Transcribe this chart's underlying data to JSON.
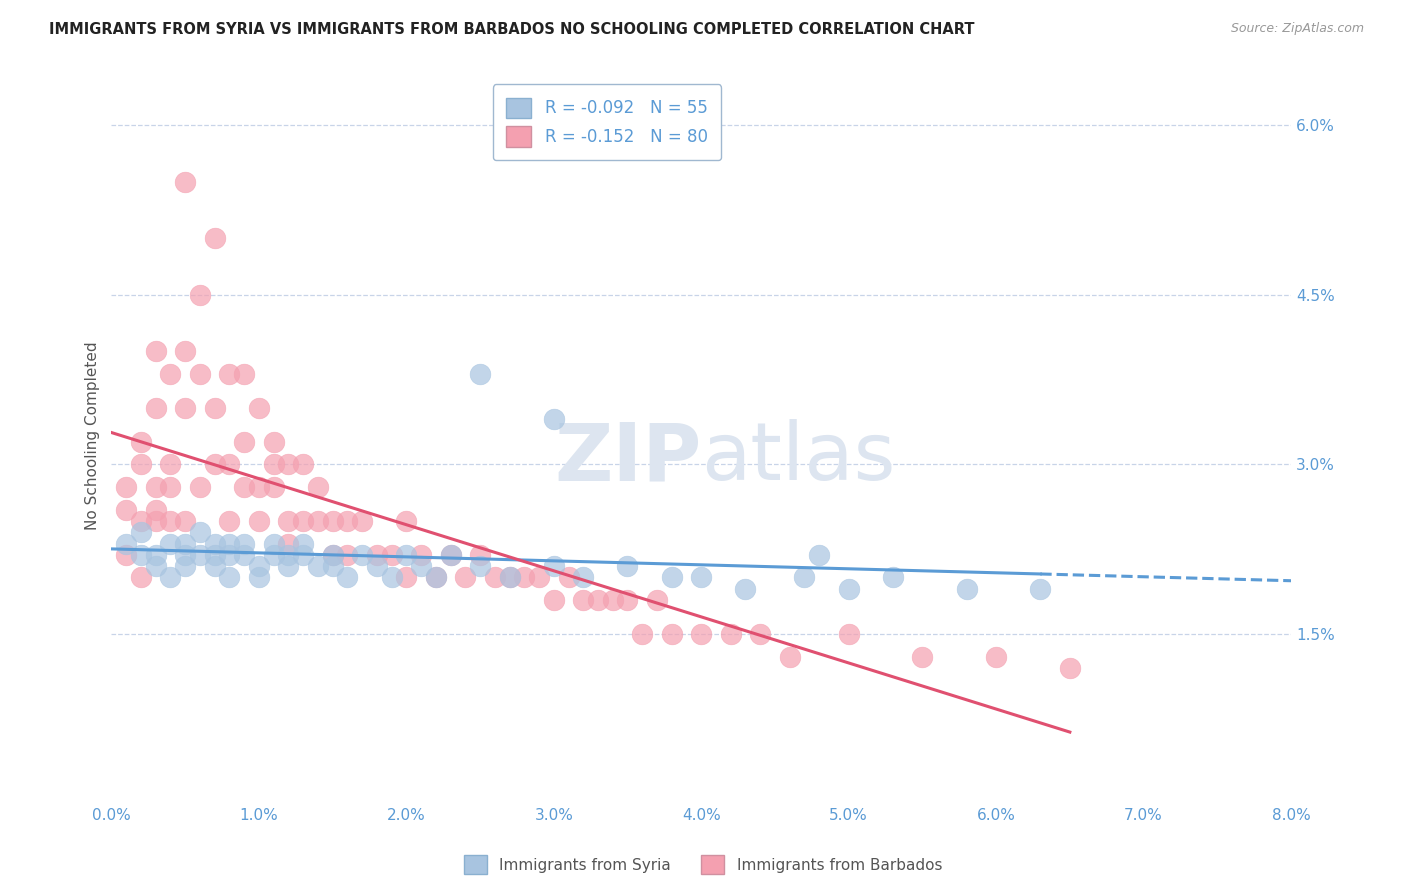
{
  "title": "IMMIGRANTS FROM SYRIA VS IMMIGRANTS FROM BARBADOS NO SCHOOLING COMPLETED CORRELATION CHART",
  "source": "Source: ZipAtlas.com",
  "ylabel": "No Schooling Completed",
  "xlim": [
    0.0,
    0.08
  ],
  "ylim": [
    0.0,
    0.065
  ],
  "xticks": [
    0.0,
    0.01,
    0.02,
    0.03,
    0.04,
    0.05,
    0.06,
    0.07,
    0.08
  ],
  "xticklabels": [
    "0.0%",
    "1.0%",
    "2.0%",
    "3.0%",
    "4.0%",
    "5.0%",
    "6.0%",
    "7.0%",
    "8.0%"
  ],
  "yticks": [
    0.015,
    0.03,
    0.045,
    0.06
  ],
  "yticklabels": [
    "1.5%",
    "3.0%",
    "4.5%",
    "6.0%"
  ],
  "syria_R": -0.092,
  "syria_N": 55,
  "barbados_R": -0.152,
  "barbados_N": 80,
  "syria_color": "#a8c4e0",
  "barbados_color": "#f4a0b0",
  "syria_line_color": "#5b9bd5",
  "barbados_line_color": "#e05070",
  "background_color": "#ffffff",
  "grid_color": "#c8d4e8",
  "title_color": "#222222",
  "axis_label_color": "#555555",
  "tick_color": "#5b9bd5",
  "watermark_color": "#dde5f0",
  "legend_edge_color": "#a0b8d0",
  "syria_scatter_x": [
    0.001,
    0.002,
    0.002,
    0.003,
    0.003,
    0.004,
    0.004,
    0.005,
    0.005,
    0.005,
    0.006,
    0.006,
    0.007,
    0.007,
    0.007,
    0.008,
    0.008,
    0.008,
    0.009,
    0.009,
    0.01,
    0.01,
    0.011,
    0.011,
    0.012,
    0.012,
    0.013,
    0.013,
    0.014,
    0.015,
    0.015,
    0.016,
    0.017,
    0.018,
    0.019,
    0.02,
    0.021,
    0.022,
    0.023,
    0.025,
    0.027,
    0.03,
    0.032,
    0.035,
    0.038,
    0.04,
    0.043,
    0.047,
    0.05,
    0.053,
    0.058,
    0.063,
    0.025,
    0.03,
    0.048
  ],
  "syria_scatter_y": [
    0.023,
    0.022,
    0.024,
    0.022,
    0.021,
    0.023,
    0.02,
    0.022,
    0.021,
    0.023,
    0.022,
    0.024,
    0.023,
    0.022,
    0.021,
    0.023,
    0.022,
    0.02,
    0.022,
    0.023,
    0.021,
    0.02,
    0.022,
    0.023,
    0.022,
    0.021,
    0.023,
    0.022,
    0.021,
    0.022,
    0.021,
    0.02,
    0.022,
    0.021,
    0.02,
    0.022,
    0.021,
    0.02,
    0.022,
    0.021,
    0.02,
    0.021,
    0.02,
    0.021,
    0.02,
    0.02,
    0.019,
    0.02,
    0.019,
    0.02,
    0.019,
    0.019,
    0.038,
    0.034,
    0.022
  ],
  "barbados_scatter_x": [
    0.001,
    0.001,
    0.002,
    0.002,
    0.002,
    0.003,
    0.003,
    0.003,
    0.003,
    0.004,
    0.004,
    0.004,
    0.005,
    0.005,
    0.005,
    0.005,
    0.006,
    0.006,
    0.006,
    0.007,
    0.007,
    0.007,
    0.008,
    0.008,
    0.008,
    0.009,
    0.009,
    0.009,
    0.01,
    0.01,
    0.01,
    0.011,
    0.011,
    0.011,
    0.012,
    0.012,
    0.012,
    0.013,
    0.013,
    0.014,
    0.014,
    0.015,
    0.015,
    0.016,
    0.016,
    0.017,
    0.018,
    0.019,
    0.02,
    0.02,
    0.021,
    0.022,
    0.023,
    0.024,
    0.025,
    0.026,
    0.027,
    0.028,
    0.029,
    0.03,
    0.031,
    0.032,
    0.033,
    0.034,
    0.035,
    0.036,
    0.037,
    0.038,
    0.04,
    0.042,
    0.044,
    0.046,
    0.05,
    0.055,
    0.06,
    0.065,
    0.001,
    0.002,
    0.003,
    0.004
  ],
  "barbados_scatter_y": [
    0.026,
    0.028,
    0.03,
    0.032,
    0.025,
    0.035,
    0.04,
    0.028,
    0.026,
    0.038,
    0.03,
    0.028,
    0.055,
    0.04,
    0.035,
    0.025,
    0.045,
    0.038,
    0.028,
    0.05,
    0.035,
    0.03,
    0.038,
    0.03,
    0.025,
    0.038,
    0.032,
    0.028,
    0.035,
    0.028,
    0.025,
    0.032,
    0.03,
    0.028,
    0.03,
    0.025,
    0.023,
    0.03,
    0.025,
    0.028,
    0.025,
    0.025,
    0.022,
    0.025,
    0.022,
    0.025,
    0.022,
    0.022,
    0.025,
    0.02,
    0.022,
    0.02,
    0.022,
    0.02,
    0.022,
    0.02,
    0.02,
    0.02,
    0.02,
    0.018,
    0.02,
    0.018,
    0.018,
    0.018,
    0.018,
    0.015,
    0.018,
    0.015,
    0.015,
    0.015,
    0.015,
    0.013,
    0.015,
    0.013,
    0.013,
    0.012,
    0.022,
    0.02,
    0.025,
    0.025
  ]
}
